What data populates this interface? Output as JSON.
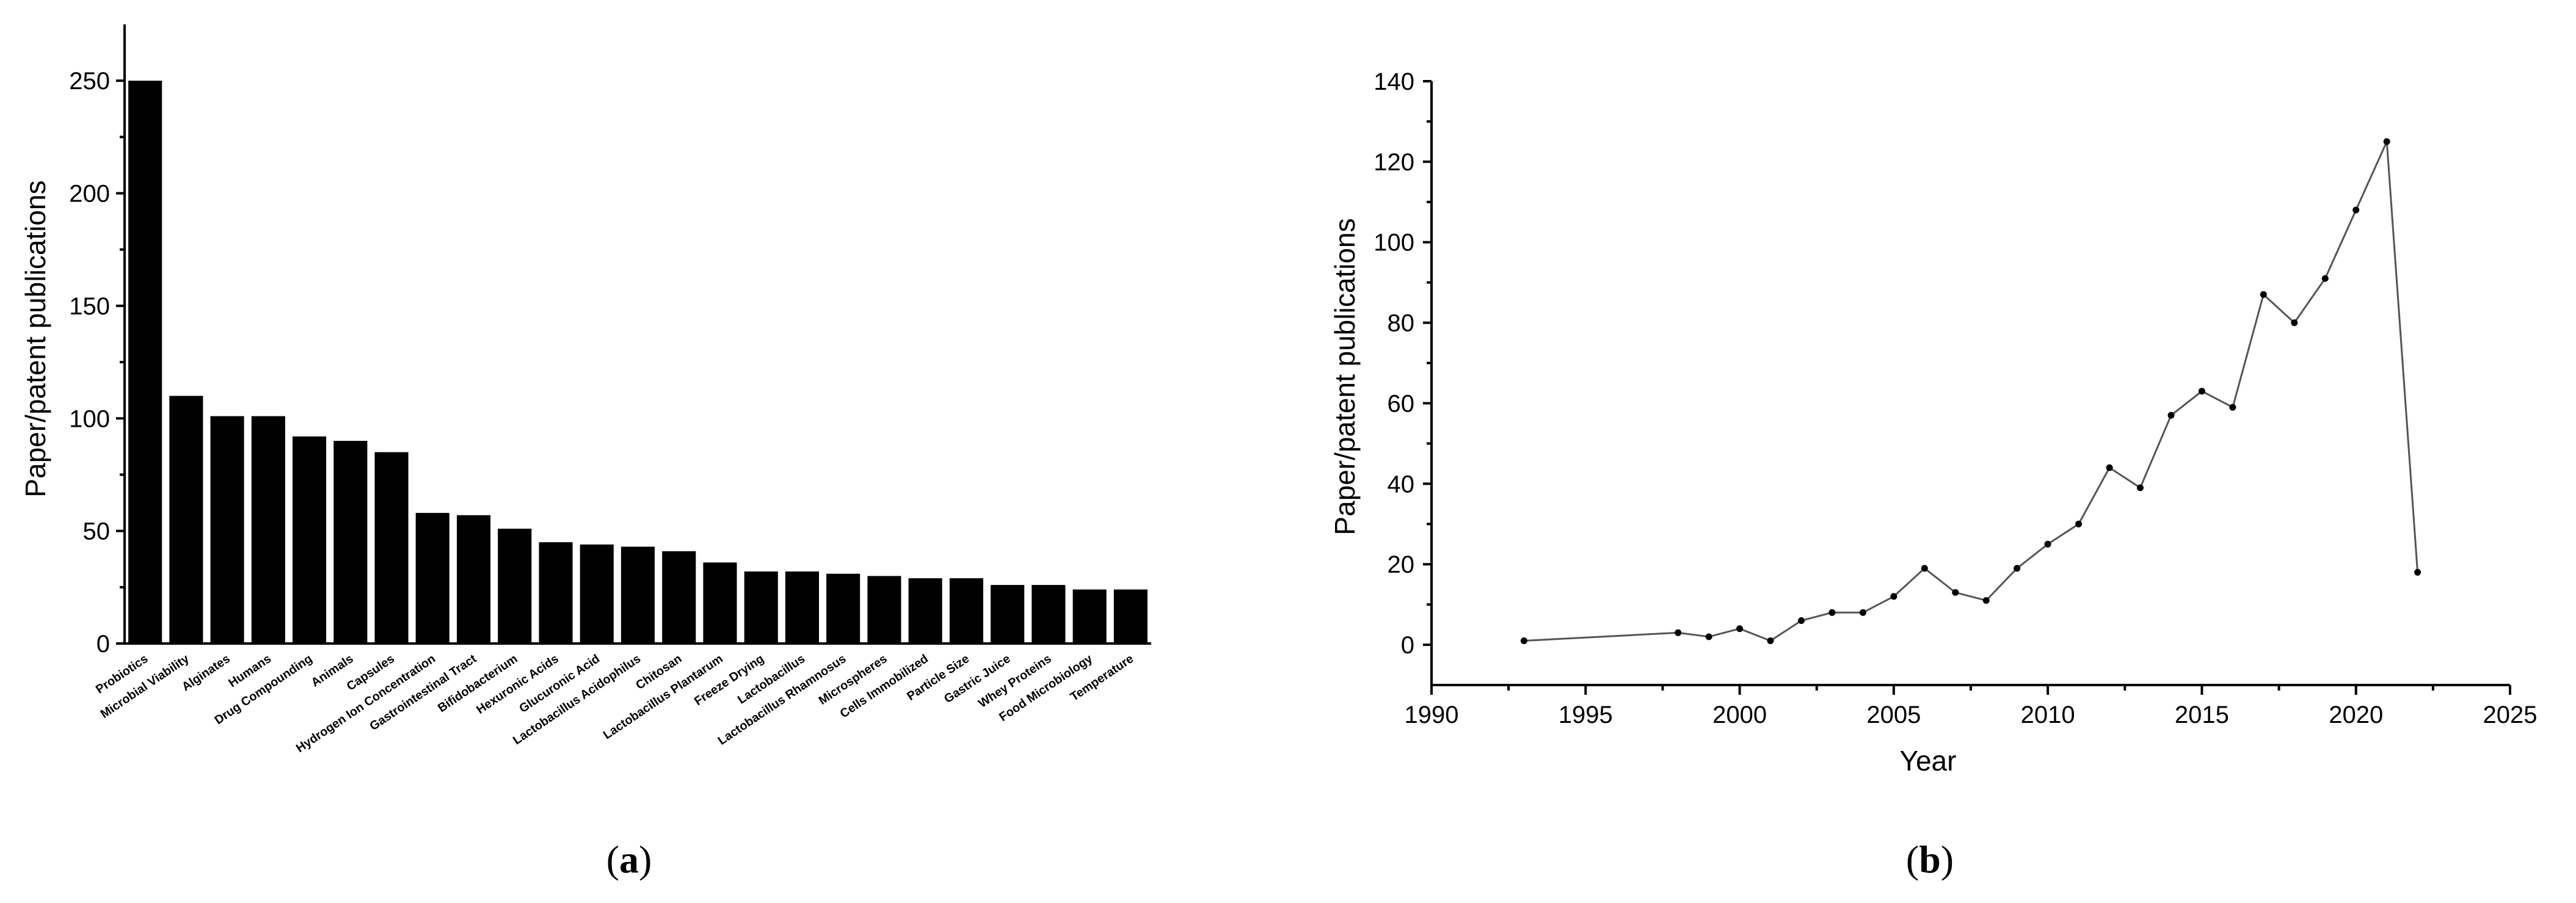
{
  "chart_data": [
    {
      "type": "bar",
      "panel_label": "a",
      "title": "",
      "xlabel": "",
      "ylabel": "Paper/patent publications",
      "ylim": [
        0,
        275
      ],
      "yticks": [
        0,
        50,
        100,
        150,
        200,
        250
      ],
      "bar_color": "#000000",
      "grid": false,
      "categories": [
        "Probiotics",
        "Microbial Viability",
        "Alginates",
        "Humans",
        "Drug Compounding",
        "Animals",
        "Capsules",
        "Hydrogen Ion Concentration",
        "Gastrointestinal Tract",
        "Bifidobacterium",
        "Hexuronic Acids",
        "Glucuronic Acid",
        "Lactobacillus Acidophilus",
        "Chitosan",
        "Lactobacillus Plantarum",
        "Freeze Drying",
        "Lactobacillus",
        "Lactobacillus Rhamnosus",
        "Microspheres",
        "Cells Immobilized",
        "Particle Size",
        "Gastric Juice",
        "Whey Proteins",
        "Food Microbiology",
        "Temperature"
      ],
      "values": [
        250,
        110,
        101,
        101,
        92,
        90,
        85,
        58,
        57,
        51,
        45,
        44,
        43,
        41,
        36,
        32,
        32,
        31,
        30,
        29,
        29,
        26,
        26,
        24,
        24
      ]
    },
    {
      "type": "line",
      "panel_label": "b",
      "title": "",
      "xlabel": "Year",
      "ylabel": "Paper/patent publications",
      "xlim": [
        1990,
        2025
      ],
      "ylim": [
        -10,
        140
      ],
      "xticks": [
        1990,
        1995,
        2000,
        2005,
        2010,
        2015,
        2020,
        2025
      ],
      "yticks": [
        0,
        20,
        40,
        60,
        80,
        100,
        120,
        140
      ],
      "line_color": "#555555",
      "marker_color": "#000000",
      "grid": false,
      "x": [
        1993,
        1998,
        1999,
        2000,
        2001,
        2002,
        2003,
        2004,
        2005,
        2006,
        2007,
        2008,
        2009,
        2010,
        2011,
        2012,
        2013,
        2014,
        2015,
        2016,
        2017,
        2018,
        2019,
        2020,
        2021,
        2022
      ],
      "y": [
        1,
        3,
        2,
        4,
        1,
        6,
        8,
        8,
        12,
        19,
        13,
        11,
        19,
        25,
        30,
        44,
        39,
        57,
        63,
        59,
        87,
        80,
        91,
        108,
        125,
        18
      ]
    }
  ]
}
